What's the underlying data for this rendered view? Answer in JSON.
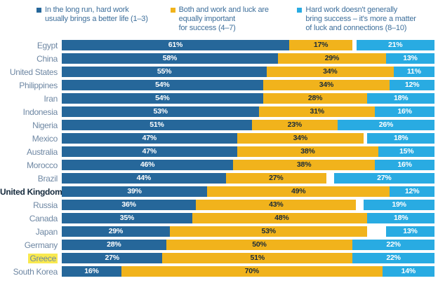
{
  "colors": {
    "hard_work_blue": "#26679A",
    "both_yellow": "#F1B31C",
    "luck_light_blue": "#29ABE2",
    "country_label": "#6E87A3",
    "country_label_emphasized": "#14293C",
    "highlight_background": "#F9E94F",
    "value_text_on_yellow": "#1B2B38",
    "value_text_on_blue": "#FFFFFF",
    "legend_text": "#3E6F9B"
  },
  "legend": {
    "items": [
      {
        "lines": [
          "In the long run, hard work",
          "usually brings a better life (1–3)"
        ],
        "swatch_color": "#26679A"
      },
      {
        "lines": [
          "Both and work and luck are",
          "equally important",
          "for success (4–7)"
        ],
        "swatch_color": "#F1B31C"
      },
      {
        "lines": [
          "Hard work doesn't generally",
          "bring success – it's more a matter",
          "of luck and connections (8–10)"
        ],
        "swatch_color": "#29ABE2"
      }
    ]
  },
  "chart_data": {
    "type": "bar",
    "stacked": true,
    "orientation": "horizontal",
    "unit": "%",
    "xlim": [
      0,
      100
    ],
    "grid": false,
    "legend_position": "top",
    "layout_note": "third series right-aligned at 100%; white gap appears when a row sums to less than 100 (e.g. Brazil, Japan, Russia)",
    "emphasized_category": "United Kingdom",
    "highlighted_category": "Greece",
    "categories": [
      "Egypt",
      "China",
      "United States",
      "Philippines",
      "Iran",
      "Indonesia",
      "Nigeria",
      "Mexico",
      "Australia",
      "Morocco",
      "Brazil",
      "United Kingdom",
      "Russia",
      "Canada",
      "Japan",
      "Germany",
      "Greece",
      "South Korea"
    ],
    "series": [
      {
        "name": "In the long run, hard work usually brings a better life (1–3)",
        "color": "#26679A",
        "values": [
          61,
          58,
          55,
          54,
          54,
          53,
          51,
          47,
          47,
          46,
          44,
          39,
          36,
          35,
          29,
          28,
          27,
          16
        ],
        "labels": [
          "61%",
          "58%",
          "55%",
          "54%",
          "54%",
          "53%",
          "51%",
          "47%",
          "47%",
          "46%",
          "44%",
          "39%",
          "36%",
          "35%",
          "29%",
          "28%",
          "27%",
          "16%"
        ]
      },
      {
        "name": "Both and work and luck are equally important for success (4–7)",
        "color": "#F1B31C",
        "values": [
          17,
          29,
          34,
          34,
          28,
          31,
          23,
          34,
          38,
          38,
          27,
          49,
          43,
          48,
          53,
          50,
          51,
          70
        ],
        "labels": [
          "17%",
          "29%",
          "34%",
          "34%",
          "28%",
          "31%",
          "23%",
          "34%",
          "38%",
          "38%",
          "27%",
          "49%",
          "43%",
          "48%",
          "53%",
          "50%",
          "51%",
          "70%"
        ]
      },
      {
        "name": "Hard work doesn't generally bring success – it's more a matter of luck and connections (8–10)",
        "color": "#29ABE2",
        "values": [
          21,
          13,
          11,
          12,
          18,
          16,
          26,
          18,
          15,
          16,
          27,
          12,
          19,
          18,
          13,
          22,
          22,
          14
        ],
        "labels": [
          "21%",
          "13%",
          "11%",
          "12%",
          "18%",
          "16%",
          "26%",
          "18%",
          "15%",
          "16%",
          "27%",
          "12%",
          "19%",
          "18%",
          "13%",
          "22%",
          "22%",
          "14%"
        ]
      }
    ]
  }
}
